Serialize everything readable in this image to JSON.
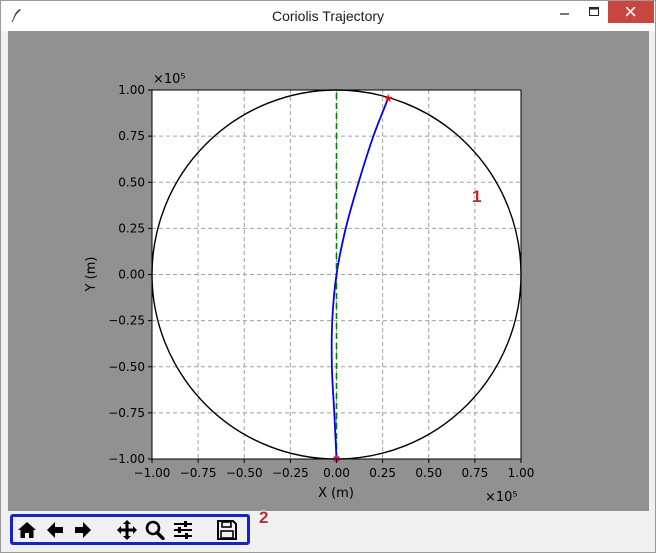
{
  "window": {
    "title": "Coriolis Trajectory",
    "app_icon": "feather-icon"
  },
  "title_controls": [
    "minimize-icon",
    "maximize-icon",
    "close-icon"
  ],
  "chart_data": {
    "type": "line",
    "xlabel": "X (m)",
    "ylabel": "Y (m)",
    "x_offset_text": "×10⁵",
    "y_offset_text": "×10⁵",
    "xlim": [
      -100000,
      100000
    ],
    "ylim": [
      -100000,
      100000
    ],
    "xticks": [
      "−1.00",
      "−0.75",
      "−0.50",
      "−0.25",
      "0.00",
      "0.25",
      "0.50",
      "0.75",
      "1.00"
    ],
    "yticks": [
      "−1.00",
      "−0.75",
      "−0.50",
      "−0.25",
      "0.00",
      "0.25",
      "0.50",
      "0.75",
      "1.00"
    ],
    "tick_values": [
      -100000,
      -75000,
      -50000,
      -25000,
      0,
      25000,
      50000,
      75000,
      100000
    ],
    "grid": true,
    "circle_radius": 100000,
    "reference_line": {
      "x": 0,
      "y_range": [
        -100000,
        100000
      ],
      "color": "#008000",
      "style": "dashed"
    },
    "series": [
      {
        "color": "#0000ff",
        "x": [
          0,
          -1200,
          -2500,
          -2300,
          0,
          5000,
          12000,
          20000,
          28000
        ],
        "y": [
          -100000,
          -75000,
          -50000,
          -25000,
          0,
          25000,
          50000,
          75000,
          95500
        ]
      }
    ],
    "start_point": {
      "x": 0,
      "y": -100000,
      "color": "#e02060"
    },
    "end_point": {
      "x": 28000,
      "y": 95500,
      "color": "#ff0000"
    }
  },
  "annotations": {
    "plot_callout": "1",
    "toolbar_callout": "2"
  },
  "toolbar": {
    "buttons": [
      {
        "name": "home-button",
        "icon": "home-icon"
      },
      {
        "name": "back-button",
        "icon": "arrow-left-icon"
      },
      {
        "name": "forward-button",
        "icon": "arrow-right-icon"
      },
      {
        "name": "pan-button",
        "icon": "move-icon"
      },
      {
        "name": "zoom-button",
        "icon": "magnifier-icon"
      },
      {
        "name": "configure-subplots-button",
        "icon": "sliders-icon"
      },
      {
        "name": "save-button",
        "icon": "floppy-disk-icon"
      }
    ]
  },
  "colors": {
    "canvas_bg": "#919191",
    "highlight_border": "#1523c8",
    "callout": "#c0262a"
  }
}
